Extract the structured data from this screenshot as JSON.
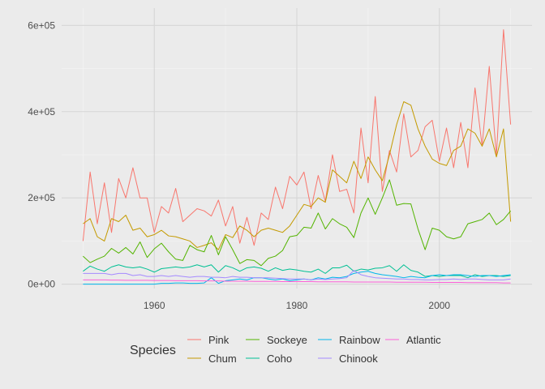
{
  "chart_data": {
    "type": "line",
    "title": "",
    "xlabel": "",
    "ylabel": "",
    "xlim": [
      1947,
      2013
    ],
    "ylim": [
      -10000,
      640000
    ],
    "x_ticks": [
      1960,
      1980,
      2000
    ],
    "x_tick_labels": [
      "1960",
      "1980",
      "2000"
    ],
    "y_ticks": [
      0,
      200000,
      400000,
      600000
    ],
    "y_tick_labels": [
      "0e+00",
      "2e+05",
      "4e+05",
      "6e+05"
    ],
    "grid": true,
    "legend": {
      "title": "Species",
      "position": "bottom",
      "rows": 2,
      "order": [
        "Pink",
        "Chum",
        "Sockeye",
        "Coho",
        "Rainbow",
        "Chinook",
        "Atlantic"
      ]
    },
    "x": [
      1950,
      1951,
      1952,
      1953,
      1954,
      1955,
      1956,
      1957,
      1958,
      1959,
      1960,
      1961,
      1962,
      1963,
      1964,
      1965,
      1966,
      1967,
      1968,
      1969,
      1970,
      1971,
      1972,
      1973,
      1974,
      1975,
      1976,
      1977,
      1978,
      1979,
      1980,
      1981,
      1982,
      1983,
      1984,
      1985,
      1986,
      1987,
      1988,
      1989,
      1990,
      1991,
      1992,
      1993,
      1994,
      1995,
      1996,
      1997,
      1998,
      1999,
      2000,
      2001,
      2002,
      2003,
      2004,
      2005,
      2006,
      2007,
      2008,
      2009,
      2010
    ],
    "series": [
      {
        "name": "Pink",
        "color": "#f8766d",
        "values": [
          100000,
          260000,
          140000,
          235000,
          120000,
          245000,
          200000,
          270000,
          200000,
          200000,
          120000,
          180000,
          165000,
          222000,
          145000,
          160000,
          175000,
          170000,
          158000,
          195000,
          135000,
          180000,
          95000,
          155000,
          90000,
          165000,
          150000,
          225000,
          175000,
          250000,
          230000,
          260000,
          175000,
          252000,
          192000,
          300000,
          215000,
          220000,
          165000,
          362000,
          235000,
          435000,
          215000,
          310000,
          260000,
          395000,
          295000,
          310000,
          365000,
          380000,
          285000,
          362000,
          270000,
          375000,
          270000,
          455000,
          320000,
          505000,
          298000,
          590000,
          370000
        ]
      },
      {
        "name": "Chum",
        "color": "#c49a00",
        "values": [
          140000,
          152000,
          110000,
          100000,
          152000,
          145000,
          160000,
          125000,
          130000,
          110000,
          115000,
          125000,
          112000,
          110000,
          105000,
          100000,
          85000,
          90000,
          96000,
          80000,
          115000,
          108000,
          135000,
          125000,
          110000,
          125000,
          130000,
          125000,
          120000,
          135000,
          160000,
          185000,
          180000,
          200000,
          190000,
          265000,
          250000,
          235000,
          285000,
          245000,
          295000,
          265000,
          240000,
          300000,
          370000,
          423000,
          415000,
          360000,
          320000,
          290000,
          280000,
          275000,
          310000,
          320000,
          360000,
          350000,
          320000,
          360000,
          295000,
          360000,
          145000
        ]
      },
      {
        "name": "Sockeye",
        "color": "#53b400",
        "values": [
          65000,
          50000,
          58000,
          65000,
          83000,
          72000,
          85000,
          70000,
          98000,
          62000,
          82000,
          95000,
          75000,
          58000,
          55000,
          90000,
          80000,
          75000,
          113000,
          68000,
          110000,
          80000,
          48000,
          57000,
          55000,
          43000,
          60000,
          65000,
          78000,
          110000,
          113000,
          132000,
          130000,
          165000,
          128000,
          152000,
          140000,
          132000,
          108000,
          165000,
          200000,
          162000,
          200000,
          242000,
          183000,
          187000,
          186000,
          128000,
          80000,
          130000,
          125000,
          110000,
          105000,
          110000,
          140000,
          145000,
          150000,
          165000,
          138000,
          150000,
          170000
        ]
      },
      {
        "name": "Coho",
        "color": "#00c094",
        "values": [
          30000,
          42000,
          35000,
          30000,
          40000,
          45000,
          40000,
          38000,
          40000,
          35000,
          28000,
          36000,
          38000,
          40000,
          38000,
          40000,
          45000,
          40000,
          45000,
          28000,
          43000,
          38000,
          30000,
          38000,
          40000,
          37000,
          30000,
          38000,
          32000,
          35000,
          33000,
          30000,
          28000,
          35000,
          25000,
          38000,
          38000,
          44000,
          30000,
          35000,
          33000,
          37000,
          38000,
          43000,
          30000,
          45000,
          32000,
          28000,
          18000,
          20000,
          18000,
          20000,
          20000,
          20000,
          15000,
          22000,
          18000,
          20000,
          20000,
          18000,
          20000
        ]
      },
      {
        "name": "Rainbow",
        "color": "#00b6eb",
        "values": [
          0,
          0,
          0,
          0,
          0,
          0,
          0,
          0,
          0,
          0,
          0,
          2000,
          2000,
          3000,
          3000,
          2000,
          2000,
          3000,
          15000,
          2000,
          8000,
          10000,
          12000,
          10000,
          15000,
          15000,
          12000,
          10000,
          12000,
          8000,
          10000,
          12000,
          10000,
          15000,
          12000,
          16000,
          15000,
          18000,
          25000,
          28000,
          30000,
          25000,
          22000,
          20000,
          18000,
          15000,
          18000,
          16000,
          15000,
          20000,
          22000,
          20000,
          22000,
          22000,
          20000,
          18000,
          20000,
          20000,
          18000,
          20000,
          22000
        ]
      },
      {
        "name": "Chinook",
        "color": "#a58aff",
        "values": [
          25000,
          25000,
          25000,
          25000,
          22000,
          25000,
          25000,
          20000,
          22000,
          18000,
          18000,
          20000,
          18000,
          20000,
          18000,
          16000,
          18000,
          18000,
          16000,
          16000,
          15000,
          18000,
          16000,
          16000,
          15000,
          15000,
          15000,
          14000,
          13000,
          12000,
          12000,
          12000,
          10000,
          12000,
          11000,
          12000,
          13000,
          15000,
          32000,
          22000,
          18000,
          15000,
          14000,
          13000,
          12000,
          12000,
          11000,
          11000,
          10000,
          10000,
          11000,
          11000,
          12000,
          11000,
          12000,
          12000,
          11000,
          10000,
          10000,
          10000,
          12000
        ]
      },
      {
        "name": "Atlantic",
        "color": "#fb61d7",
        "values": [
          10000,
          10000,
          10000,
          10000,
          9500,
          9500,
          9000,
          9000,
          9000,
          9000,
          8500,
          8500,
          8500,
          8000,
          8000,
          8000,
          8000,
          7500,
          7500,
          7500,
          7000,
          7000,
          7000,
          7000,
          6500,
          6500,
          6500,
          6500,
          6000,
          6000,
          6000,
          6000,
          6000,
          5500,
          5500,
          5500,
          5500,
          5500,
          5000,
          5000,
          5000,
          5000,
          5000,
          5000,
          4500,
          4500,
          4500,
          4500,
          4500,
          4000,
          4000,
          4000,
          4000,
          4000,
          3500,
          3500,
          3500,
          3500,
          3500,
          3000,
          3000
        ]
      }
    ]
  }
}
